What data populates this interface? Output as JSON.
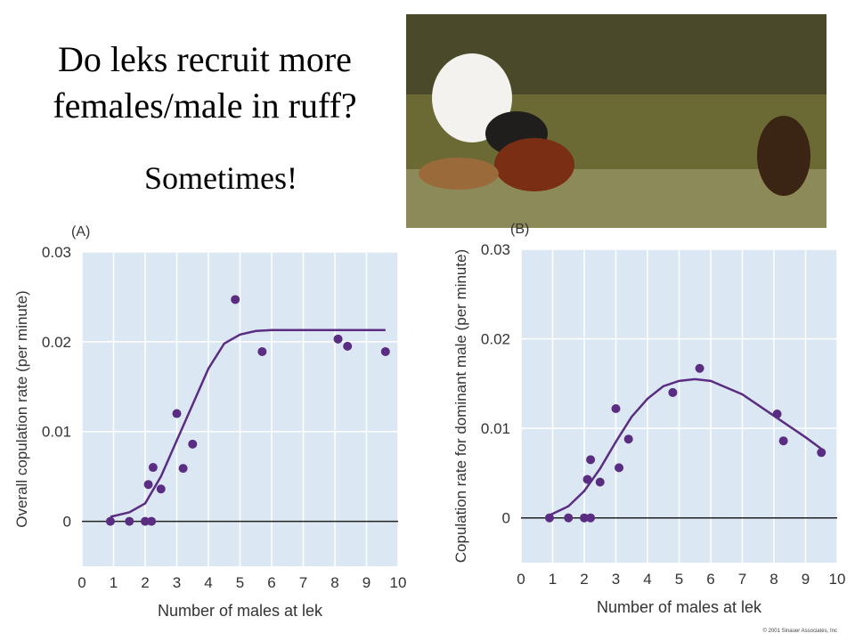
{
  "slide": {
    "title": "Do leks recruit more females/male in ruff?",
    "answer": "Sometimes!",
    "credit": "© 2001 Sinauer Associates, Inc"
  },
  "chart_data": [
    {
      "type": "scatter",
      "panel_label": "(A)",
      "x_label": "Number of males at lek",
      "y_label": "Overall copulation rate (per minute)",
      "xlim": [
        0,
        10
      ],
      "ylim": [
        -0.005,
        0.03
      ],
      "xticks": [
        0,
        1,
        2,
        3,
        4,
        5,
        6,
        7,
        8,
        9,
        10
      ],
      "yticks": [
        0,
        0.01,
        0.02,
        0.03
      ],
      "grid": true,
      "series": [
        {
          "mode": "markers",
          "color": "#5a2d82",
          "x": [
            0.9,
            1.5,
            2.0,
            2.2,
            2.1,
            2.25,
            2.5,
            3.0,
            3.2,
            3.5,
            4.85,
            5.7,
            8.1,
            8.4,
            9.6
          ],
          "values": [
            0,
            0,
            0,
            0,
            0.0041,
            0.006,
            0.0036,
            0.012,
            0.0059,
            0.0086,
            0.0247,
            0.0189,
            0.0203,
            0.0195,
            0.0189
          ]
        },
        {
          "mode": "line",
          "color": "#5a2d82",
          "x": [
            0.9,
            1.5,
            2,
            2.5,
            3,
            3.5,
            4,
            4.5,
            5,
            5.5,
            6,
            9.6
          ],
          "values": [
            0.0005,
            0.001,
            0.002,
            0.005,
            0.009,
            0.013,
            0.017,
            0.0198,
            0.0208,
            0.0212,
            0.0213,
            0.0213
          ]
        }
      ]
    },
    {
      "type": "scatter",
      "panel_label": "(B)",
      "x_label": "Number of males at lek",
      "y_label": "Copulation rate for dominant male (per minute)",
      "xlim": [
        0,
        10
      ],
      "ylim": [
        -0.005,
        0.03
      ],
      "xticks": [
        0,
        1,
        2,
        3,
        4,
        5,
        6,
        7,
        8,
        9,
        10
      ],
      "yticks": [
        0,
        0.01,
        0.02,
        0.03
      ],
      "grid": true,
      "series": [
        {
          "mode": "markers",
          "color": "#5a2d82",
          "x": [
            0.9,
            1.5,
            2.0,
            2.2,
            2.1,
            2.2,
            2.5,
            3.0,
            3.1,
            3.4,
            4.8,
            5.65,
            8.1,
            8.3,
            9.5
          ],
          "values": [
            0,
            0,
            0,
            0,
            0.0043,
            0.0065,
            0.004,
            0.0122,
            0.0056,
            0.0088,
            0.014,
            0.0167,
            0.0116,
            0.0086,
            0.0073
          ]
        },
        {
          "mode": "line",
          "color": "#5a2d82",
          "x": [
            0.9,
            1.5,
            2,
            2.5,
            3,
            3.5,
            4,
            4.5,
            5,
            5.5,
            6,
            7,
            8,
            9,
            9.5
          ],
          "values": [
            0.0003,
            0.0013,
            0.003,
            0.0055,
            0.0085,
            0.0113,
            0.0133,
            0.0147,
            0.0153,
            0.0155,
            0.0153,
            0.0138,
            0.0114,
            0.009,
            0.0077
          ]
        }
      ]
    }
  ]
}
